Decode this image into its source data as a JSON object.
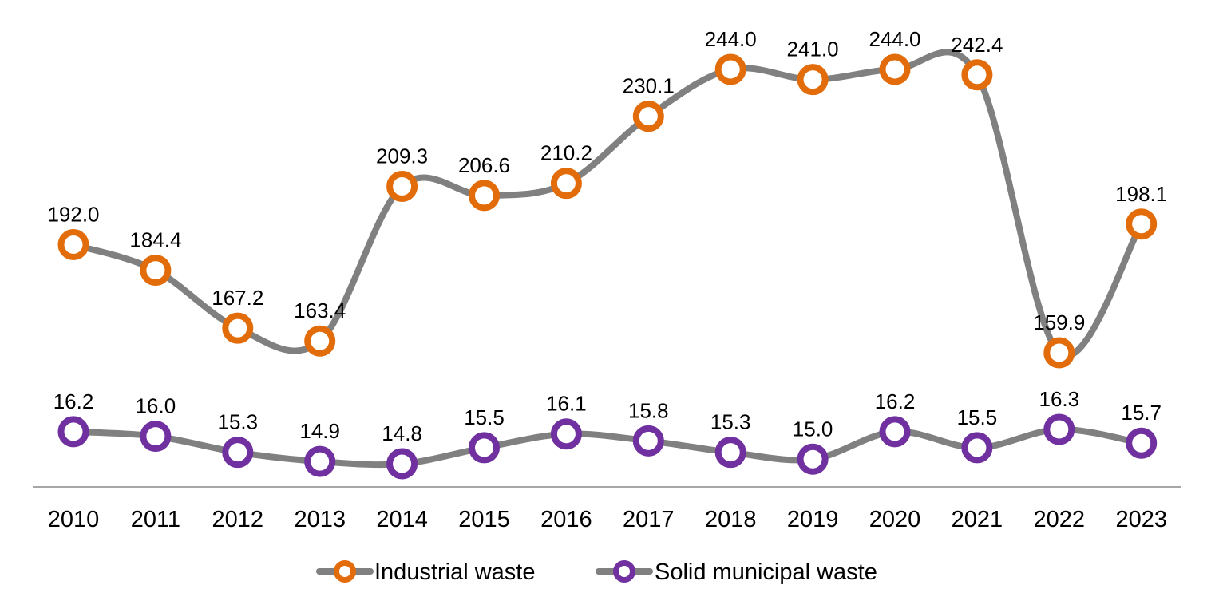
{
  "chart_data": {
    "type": "line",
    "categories": [
      "2010",
      "2011",
      "2012",
      "2013",
      "2014",
      "2015",
      "2016",
      "2017",
      "2018",
      "2019",
      "2020",
      "2021",
      "2022",
      "2023"
    ],
    "series": [
      {
        "name": "Industrial waste",
        "marker_color": "#e36c0a",
        "line_color": "#808080",
        "values": [
          192.0,
          184.4,
          167.2,
          163.4,
          209.3,
          206.6,
          210.2,
          230.1,
          244.0,
          241.0,
          244.0,
          242.4,
          159.9,
          198.1
        ],
        "labels": [
          "192.0",
          "184.4",
          "167.2",
          "163.4",
          "209.3",
          "206.6",
          "210.2",
          "230.1",
          "244.0",
          "241.0",
          "244.0",
          "242.4",
          "159.9",
          "198.1"
        ]
      },
      {
        "name": "Solid municipal waste",
        "marker_color": "#7030a0",
        "line_color": "#808080",
        "values": [
          16.2,
          16.0,
          15.3,
          14.9,
          14.8,
          15.5,
          16.1,
          15.8,
          15.3,
          15.0,
          16.2,
          15.5,
          16.3,
          15.7
        ],
        "labels": [
          "16.2",
          "16.0",
          "15.3",
          "14.9",
          "14.8",
          "15.5",
          "16.1",
          "15.8",
          "15.3",
          "15.0",
          "16.2",
          "15.5",
          "16.3",
          "15.7"
        ]
      }
    ],
    "title": "",
    "xlabel": "",
    "ylabel": "",
    "y_axis_visible": false,
    "grid": false,
    "smooth_lines": true,
    "legend_position": "bottom",
    "axis_color": "#a6a6a6"
  }
}
